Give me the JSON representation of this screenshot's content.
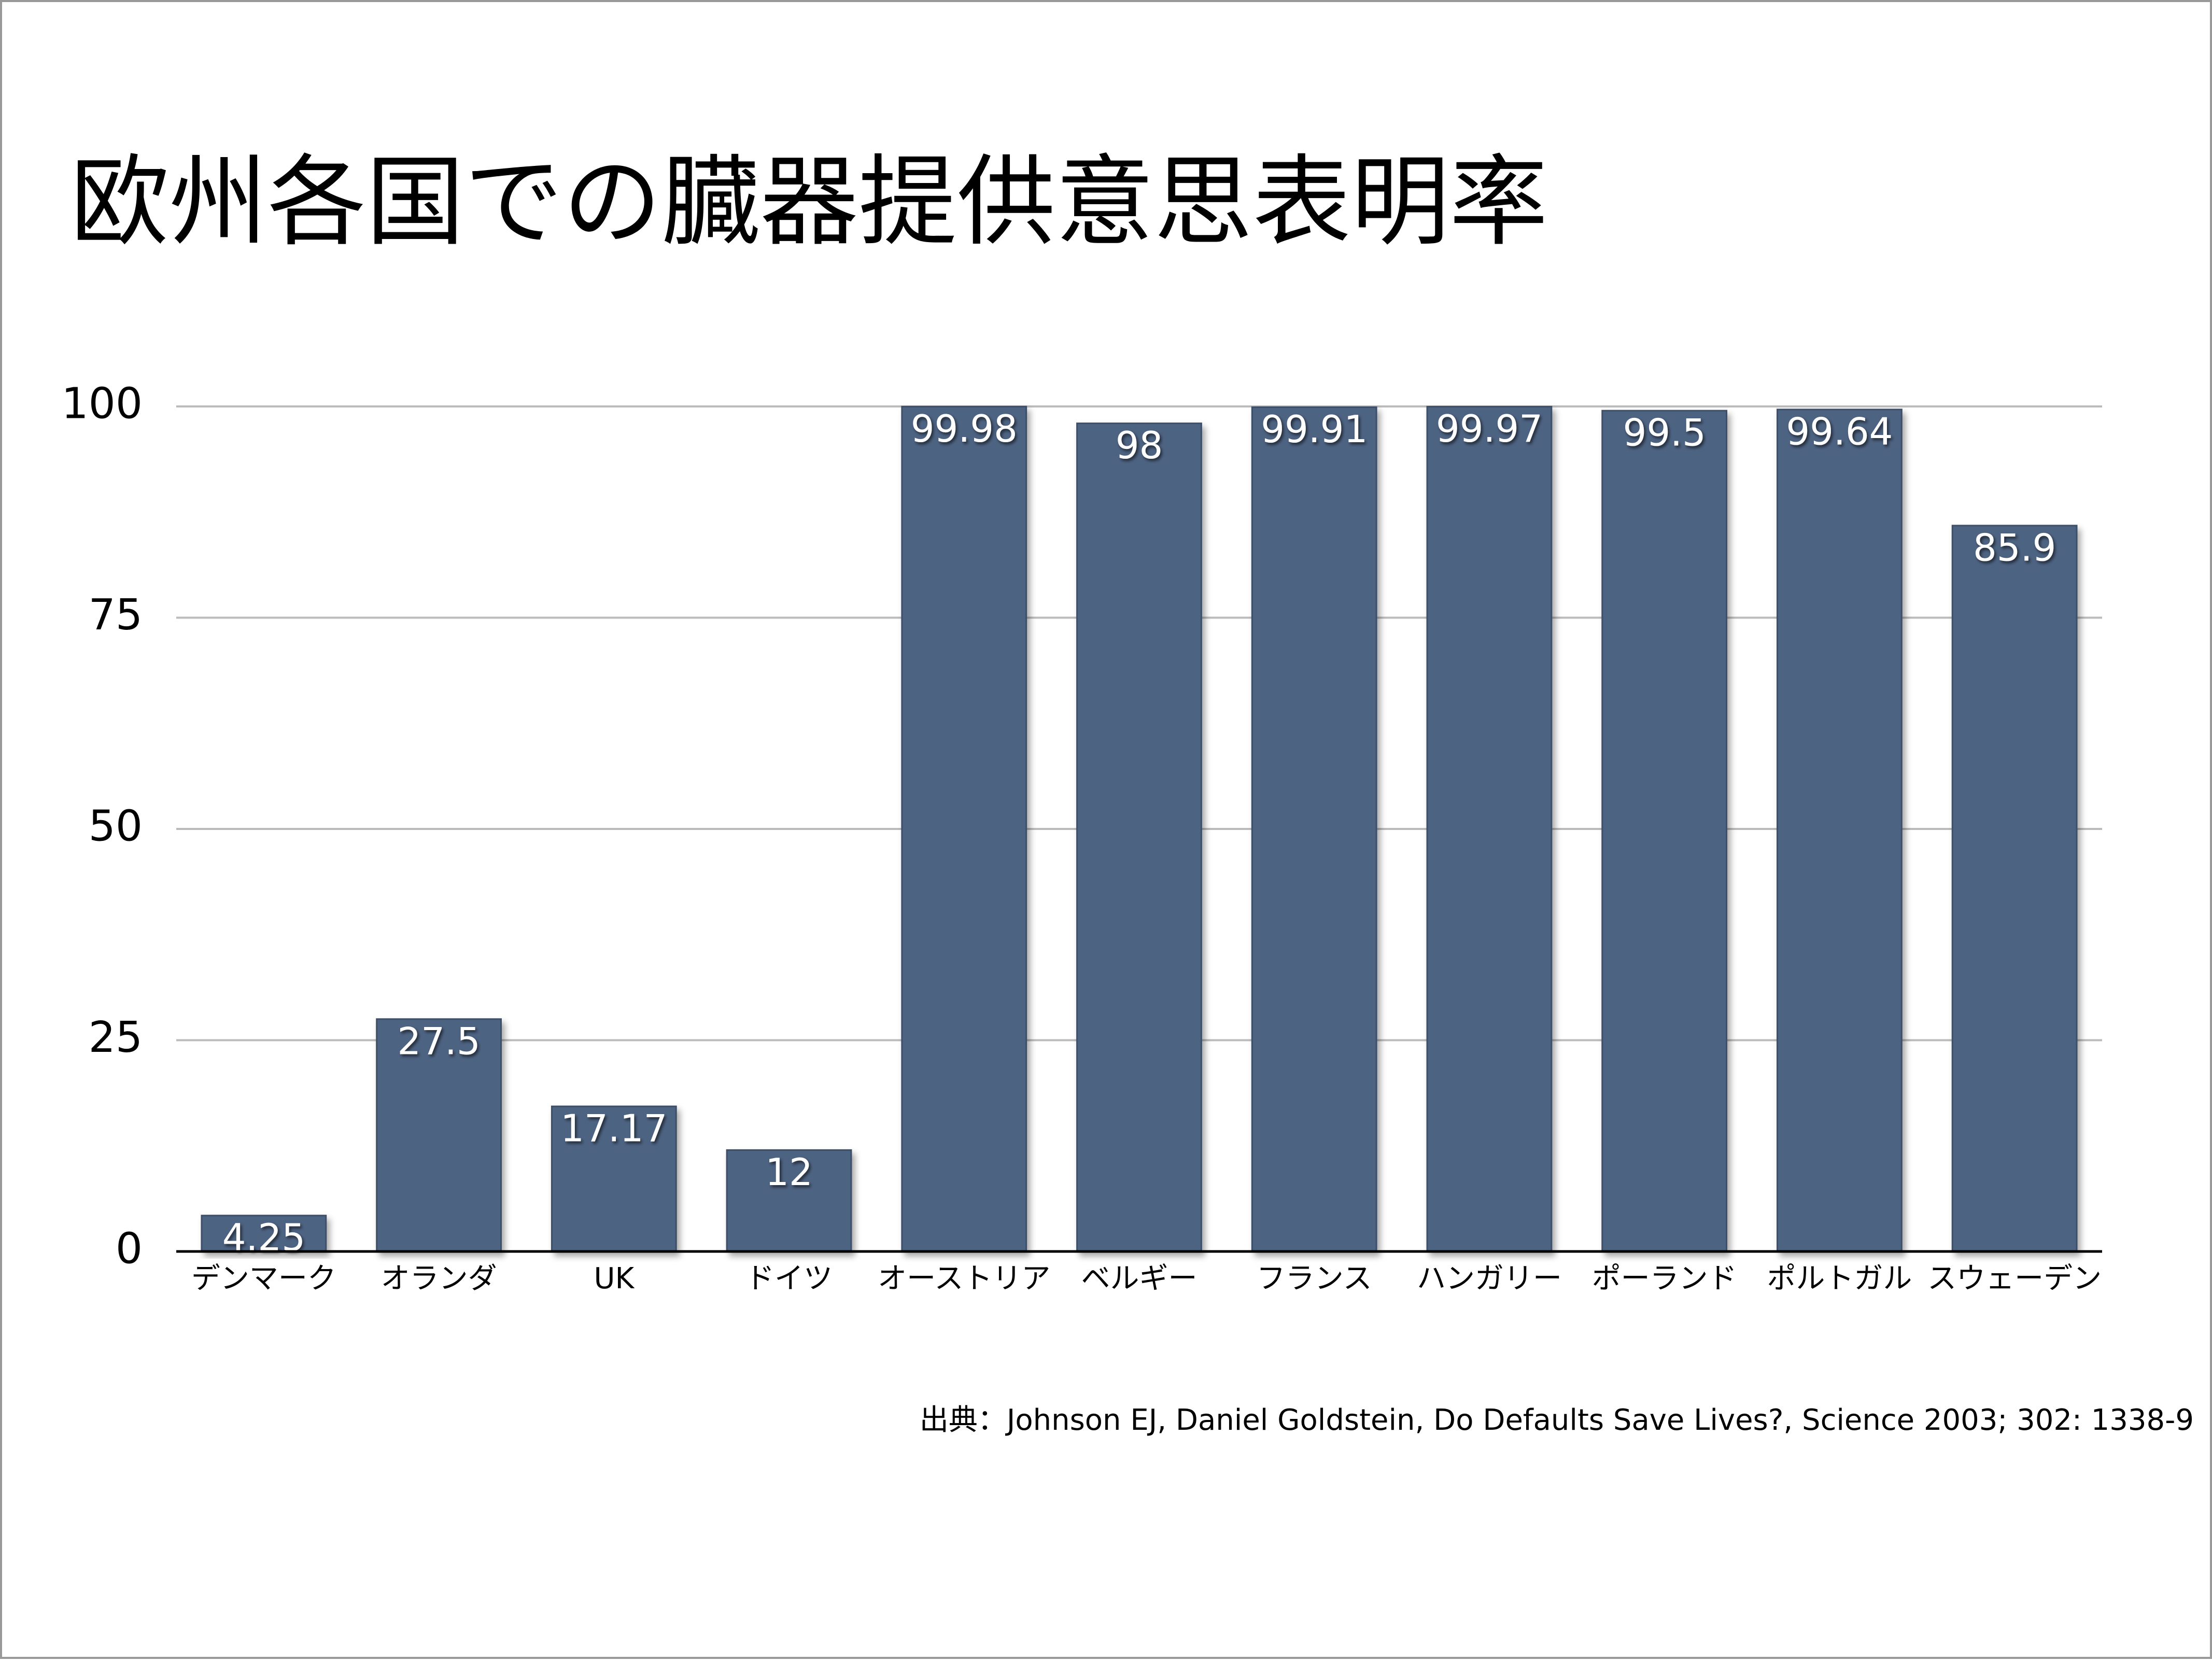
{
  "chart_data": {
    "type": "bar",
    "title": "欧州各国での臓器提供意思表明率",
    "categories": [
      "デンマーク",
      "オランダ",
      "UK",
      "ドイツ",
      "オーストリア",
      "ベルギー",
      "フランス",
      "ハンガリー",
      "ポーランド",
      "ポルトガル",
      "スウェーデン"
    ],
    "values": [
      4.25,
      27.5,
      17.17,
      12,
      99.98,
      98,
      99.91,
      99.97,
      99.5,
      99.64,
      85.9
    ],
    "color": "#4d6382",
    "ylim": [
      0,
      100
    ],
    "yticks": [
      0,
      25,
      50,
      75,
      100
    ],
    "grid": true,
    "source": "出典：Johnson EJ, Daniel Goldstein, Do Defaults Save Lives?, Science 2003; 302: 1338-9"
  }
}
